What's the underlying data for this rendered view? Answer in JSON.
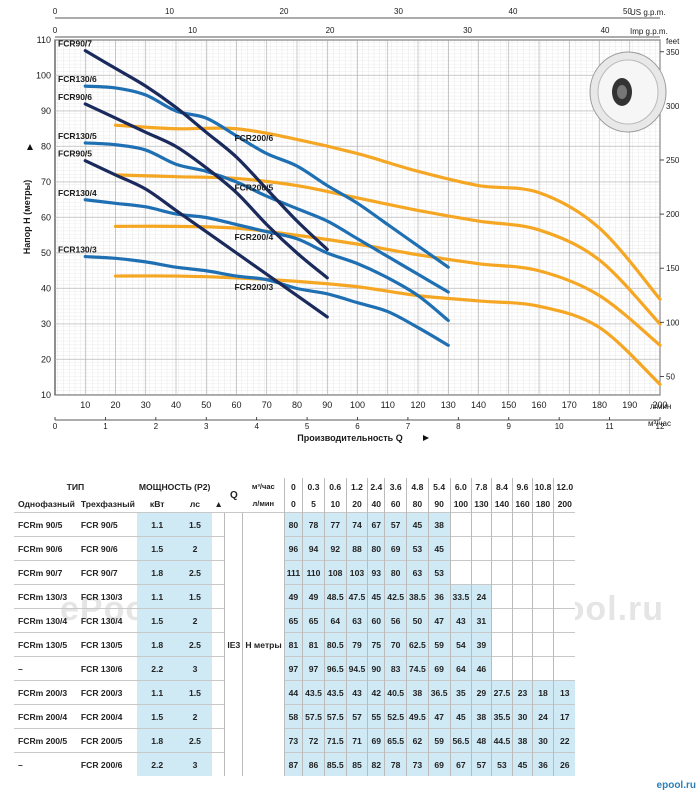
{
  "chart_data": {
    "type": "line",
    "ylabel": "Напор H (метры)",
    "xlabel": "Производительность Q",
    "x_unit": "л/мин",
    "x2_unit": "м³/час",
    "top_units": [
      "US g.p.m.",
      "Imp g.p.m."
    ],
    "right_unit": "feet",
    "xlim": [
      0,
      200
    ],
    "ylim": [
      10,
      110
    ],
    "x_ticks": [
      10,
      20,
      30,
      40,
      50,
      60,
      70,
      80,
      90,
      100,
      110,
      120,
      130,
      140,
      150,
      160,
      170,
      180,
      190,
      200
    ],
    "y_ticks": [
      10,
      20,
      30,
      40,
      50,
      60,
      70,
      80,
      90,
      100,
      110
    ],
    "m3h_ticks": [
      0,
      1,
      2,
      3,
      4,
      5,
      6,
      7,
      8,
      9,
      10,
      11,
      12
    ],
    "us_gpm_ticks": [
      0,
      10,
      20,
      30,
      40,
      50
    ],
    "imp_gpm_ticks": [
      0,
      10,
      20,
      30,
      40
    ],
    "feet_ticks": [
      50,
      100,
      150,
      200,
      250,
      300,
      350
    ],
    "colors": {
      "navy": "#1b2a5c",
      "blue": "#1f6fb3",
      "orange": "#f5a623"
    },
    "series": [
      {
        "name": "FCR90/7",
        "color": "navy",
        "x": [
          10,
          20,
          30,
          40,
          50,
          60,
          70,
          80,
          90
        ],
        "y": [
          107,
          102,
          97,
          91,
          84,
          77,
          68,
          59,
          51
        ]
      },
      {
        "name": "FCR90/6",
        "color": "navy",
        "x": [
          10,
          20,
          30,
          40,
          50,
          60,
          70,
          80,
          90
        ],
        "y": [
          92,
          88,
          84,
          80,
          74,
          67,
          58,
          50,
          43
        ]
      },
      {
        "name": "FCR90/5",
        "color": "navy",
        "x": [
          10,
          20,
          30,
          40,
          50,
          60,
          70,
          80,
          90
        ],
        "y": [
          76,
          72,
          68,
          62,
          56,
          50,
          44,
          38,
          32
        ]
      },
      {
        "name": "FCR130/6",
        "color": "blue",
        "x": [
          10,
          20,
          30,
          40,
          50,
          60,
          70,
          80,
          90,
          100,
          110,
          120,
          130
        ],
        "y": [
          97,
          96.5,
          94.5,
          90,
          88,
          83,
          78,
          74.5,
          69,
          64,
          58,
          52,
          46
        ]
      },
      {
        "name": "FCR130/5",
        "color": "blue",
        "x": [
          10,
          20,
          30,
          40,
          50,
          60,
          70,
          80,
          90,
          100,
          110,
          120,
          130
        ],
        "y": [
          81,
          80.5,
          79,
          75,
          73,
          70,
          66,
          62.5,
          59,
          54,
          49,
          44,
          39
        ]
      },
      {
        "name": "FCR130/4",
        "color": "blue",
        "x": [
          10,
          20,
          30,
          40,
          50,
          60,
          70,
          80,
          90,
          100,
          110,
          120,
          130
        ],
        "y": [
          65,
          64,
          63,
          61,
          60,
          58,
          56,
          54,
          50,
          47,
          43,
          38,
          31
        ]
      },
      {
        "name": "FCR130/3",
        "color": "blue",
        "x": [
          10,
          20,
          30,
          40,
          50,
          60,
          70,
          80,
          90,
          100,
          110,
          120,
          130
        ],
        "y": [
          49,
          48.5,
          47.5,
          46,
          45,
          43.5,
          42.5,
          40,
          38.5,
          36,
          33.5,
          29,
          24
        ]
      },
      {
        "name": "FCR200/6",
        "color": "orange",
        "x": [
          20,
          40,
          60,
          80,
          100,
          120,
          140,
          160,
          180,
          200
        ],
        "y": [
          86,
          85,
          85,
          82,
          78,
          73,
          69,
          67,
          57,
          37
        ]
      },
      {
        "name": "FCR200/5",
        "color": "orange",
        "x": [
          20,
          40,
          60,
          80,
          100,
          120,
          140,
          160,
          180,
          200
        ],
        "y": [
          72,
          71.5,
          71,
          69,
          65.5,
          62,
          59,
          56.5,
          48,
          30
        ]
      },
      {
        "name": "FCR200/4",
        "color": "orange",
        "x": [
          20,
          40,
          60,
          80,
          100,
          120,
          140,
          160,
          180,
          200
        ],
        "y": [
          57.5,
          57.5,
          57,
          55,
          52.5,
          49.5,
          47,
          45,
          38,
          24
        ]
      },
      {
        "name": "FCR200/3",
        "color": "orange",
        "x": [
          20,
          40,
          60,
          80,
          100,
          120,
          140,
          160,
          180,
          200
        ],
        "y": [
          43.5,
          43.5,
          43,
          42,
          40.5,
          38,
          36.5,
          35,
          29,
          13
        ]
      }
    ]
  },
  "table": {
    "h_type": "ТИП",
    "h_power": "МОЩНОСТЬ (P2)",
    "h_single": "Однофазный",
    "h_three": "Трехфазный",
    "h_kw": "кВт",
    "h_hp": "лс",
    "h_phase_mark": "▲",
    "h_q": "Q",
    "h_m3h": "м³/час",
    "h_lmin": "л/мин",
    "ie3": "IE3",
    "h_label": "H метры",
    "m3h": [
      "0",
      "0.3",
      "0.6",
      "1.2",
      "2.4",
      "3.6",
      "4.8",
      "5.4",
      "6.0",
      "7.8",
      "8.4",
      "9.6",
      "10.8",
      "12.0"
    ],
    "lmin": [
      "0",
      "5",
      "10",
      "20",
      "40",
      "60",
      "80",
      "90",
      "100",
      "130",
      "140",
      "160",
      "180",
      "200"
    ],
    "rows": [
      {
        "single": "FCRm 90/5",
        "three": "FCR 90/5",
        "kw": "1.1",
        "hp": "1.5",
        "h": [
          "80",
          "78",
          "77",
          "74",
          "67",
          "57",
          "45",
          "38"
        ]
      },
      {
        "single": "FCRm 90/6",
        "three": "FCR 90/6",
        "kw": "1.5",
        "hp": "2",
        "h": [
          "96",
          "94",
          "92",
          "88",
          "80",
          "69",
          "53",
          "45"
        ]
      },
      {
        "single": "FCRm 90/7",
        "three": "FCR 90/7",
        "kw": "1.8",
        "hp": "2.5",
        "h": [
          "111",
          "110",
          "108",
          "103",
          "93",
          "80",
          "63",
          "53"
        ]
      },
      {
        "single": "FCRm 130/3",
        "three": "FCR 130/3",
        "kw": "1.1",
        "hp": "1.5",
        "h": [
          "49",
          "49",
          "48.5",
          "47.5",
          "45",
          "42.5",
          "38.5",
          "36",
          "33.5",
          "24"
        ]
      },
      {
        "single": "FCRm 130/4",
        "three": "FCR 130/4",
        "kw": "1.5",
        "hp": "2",
        "h": [
          "65",
          "65",
          "64",
          "63",
          "60",
          "56",
          "50",
          "47",
          "43",
          "31"
        ]
      },
      {
        "single": "FCRm 130/5",
        "three": "FCR 130/5",
        "kw": "1.8",
        "hp": "2.5",
        "h": [
          "81",
          "81",
          "80.5",
          "79",
          "75",
          "70",
          "62.5",
          "59",
          "54",
          "39"
        ]
      },
      {
        "single": "–",
        "three": "FCR 130/6",
        "kw": "2.2",
        "hp": "3",
        "h": [
          "97",
          "97",
          "96.5",
          "94.5",
          "90",
          "83",
          "74.5",
          "69",
          "64",
          "46"
        ]
      },
      {
        "single": "FCRm 200/3",
        "three": "FCR 200/3",
        "kw": "1.1",
        "hp": "1.5",
        "h": [
          "44",
          "43.5",
          "43.5",
          "43",
          "42",
          "40.5",
          "38",
          "36.5",
          "35",
          "29",
          "27.5",
          "23",
          "18",
          "13"
        ]
      },
      {
        "single": "FCRm 200/4",
        "three": "FCR 200/4",
        "kw": "1.5",
        "hp": "2",
        "h": [
          "58",
          "57.5",
          "57.5",
          "57",
          "55",
          "52.5",
          "49.5",
          "47",
          "45",
          "38",
          "35.5",
          "30",
          "24",
          "17"
        ]
      },
      {
        "single": "FCRm 200/5",
        "three": "FCR 200/5",
        "kw": "1.8",
        "hp": "2.5",
        "h": [
          "73",
          "72",
          "71.5",
          "71",
          "69",
          "65.5",
          "62",
          "59",
          "56.5",
          "48",
          "44.5",
          "38",
          "30",
          "22"
        ]
      },
      {
        "single": "–",
        "three": "FCR 200/6",
        "kw": "2.2",
        "hp": "3",
        "h": [
          "87",
          "86",
          "85.5",
          "85",
          "82",
          "78",
          "73",
          "69",
          "67",
          "57",
          "53",
          "45",
          "36",
          "26"
        ]
      }
    ]
  },
  "watermark": "ePool.ru",
  "brand": "epool.ru"
}
